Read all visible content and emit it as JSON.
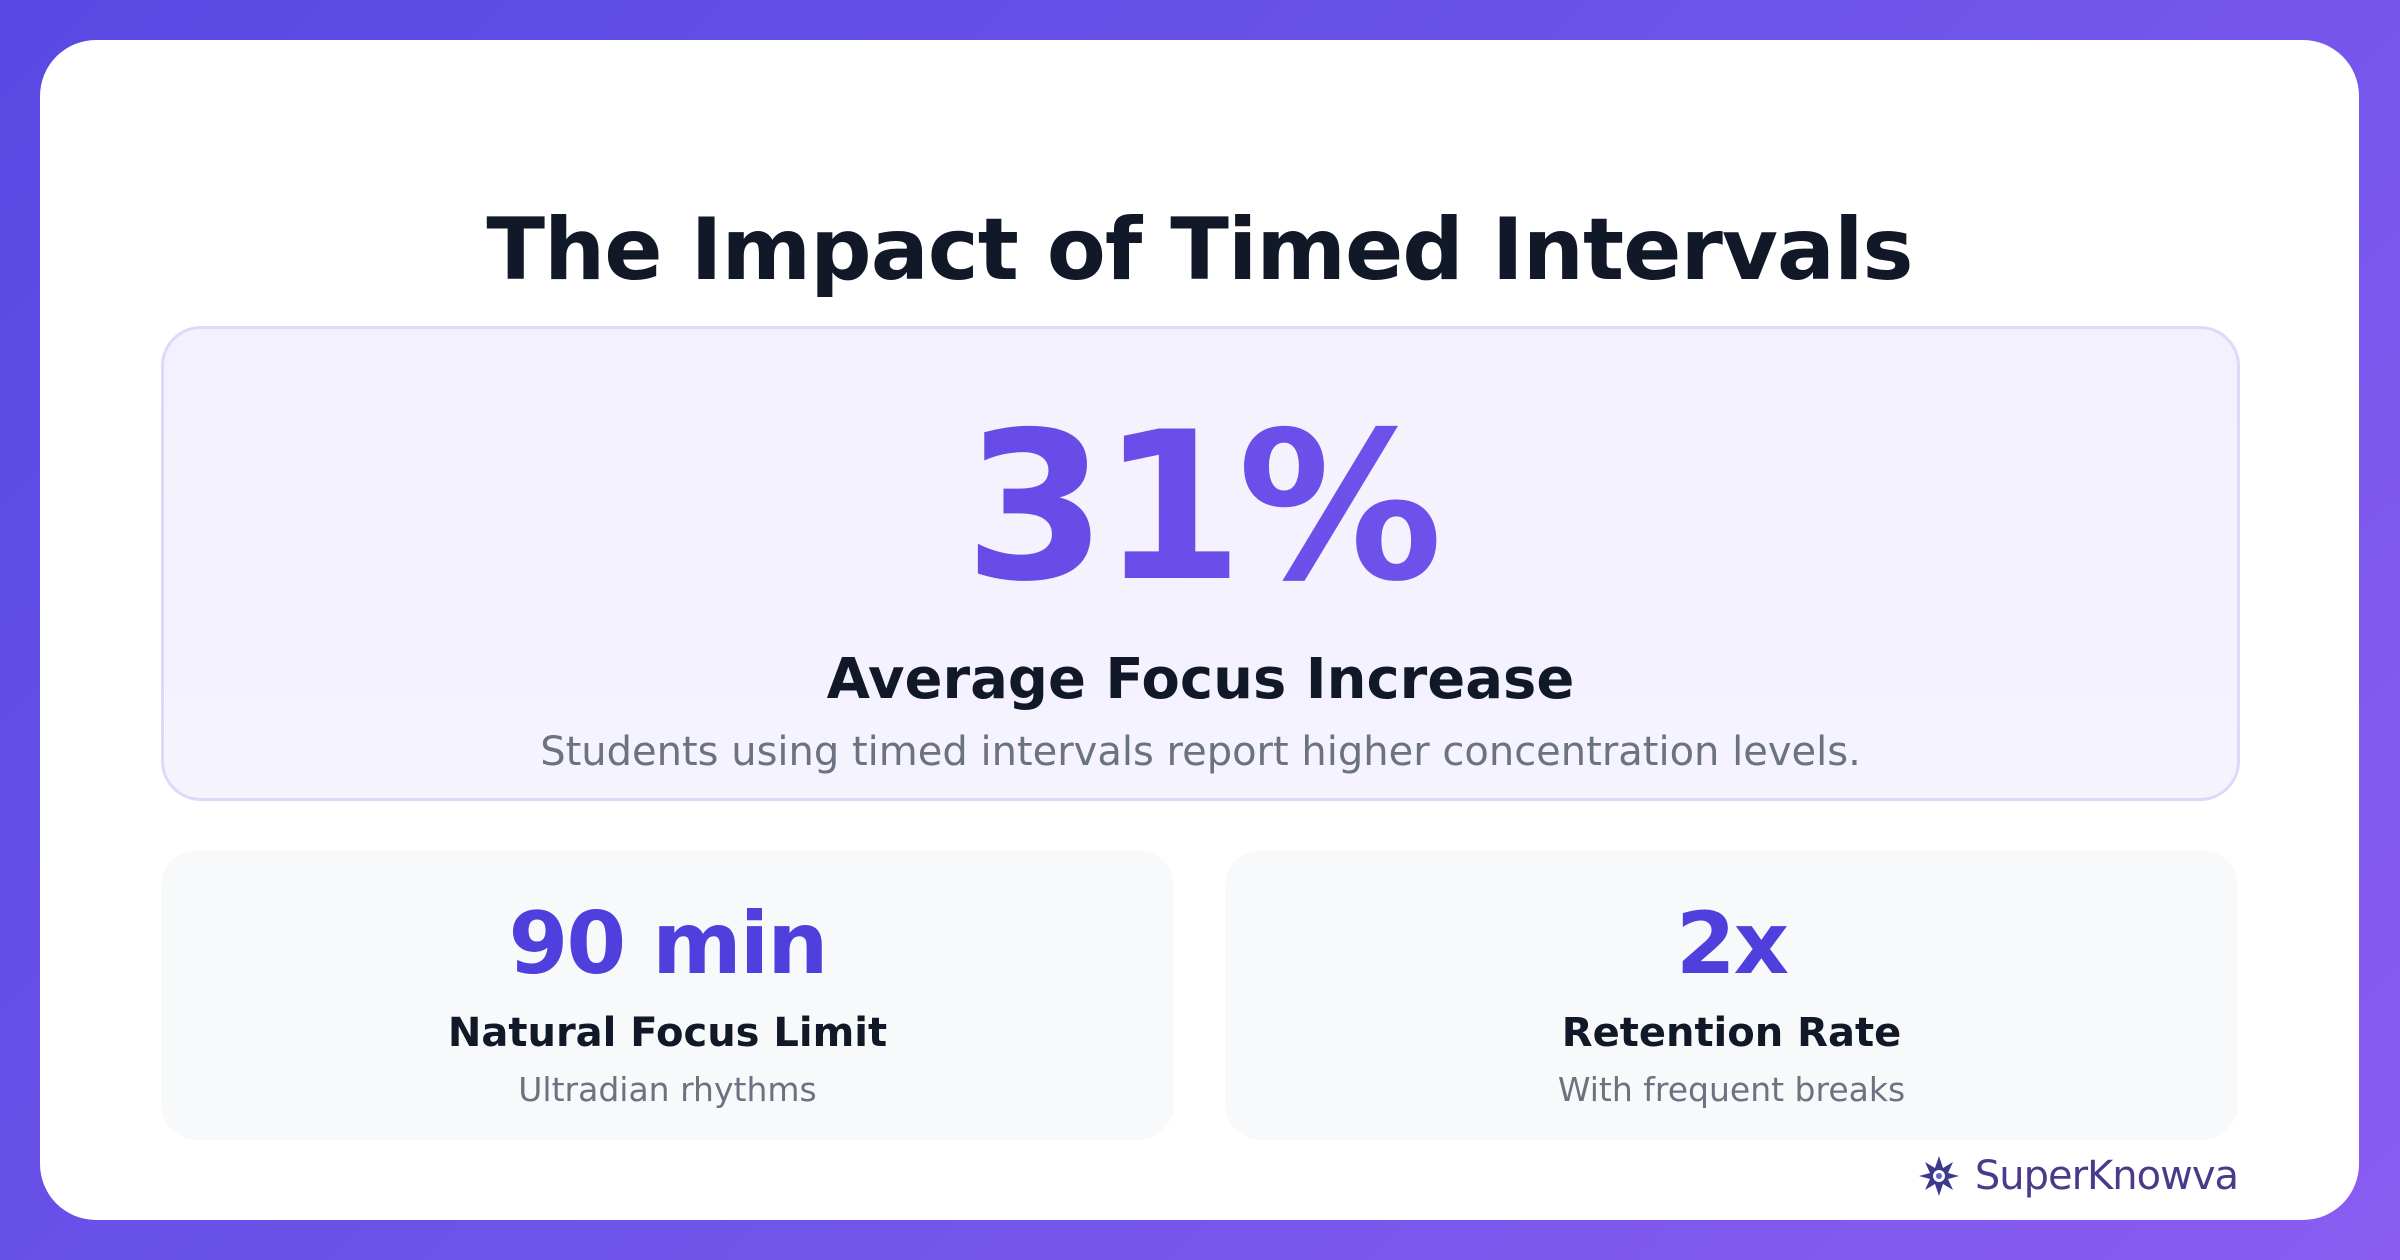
{
  "title": "The Impact of Timed Intervals",
  "hero": {
    "value": "31%",
    "label": "Average Focus Increase",
    "description": "Students using timed intervals report higher concentration levels."
  },
  "stats": [
    {
      "value": "90 min",
      "label": "Natural Focus Limit",
      "description": "Ultradian rhythms"
    },
    {
      "value": "2x",
      "label": "Retention Rate",
      "description": "With frequent breaks"
    }
  ],
  "brand": "SuperKnowva"
}
